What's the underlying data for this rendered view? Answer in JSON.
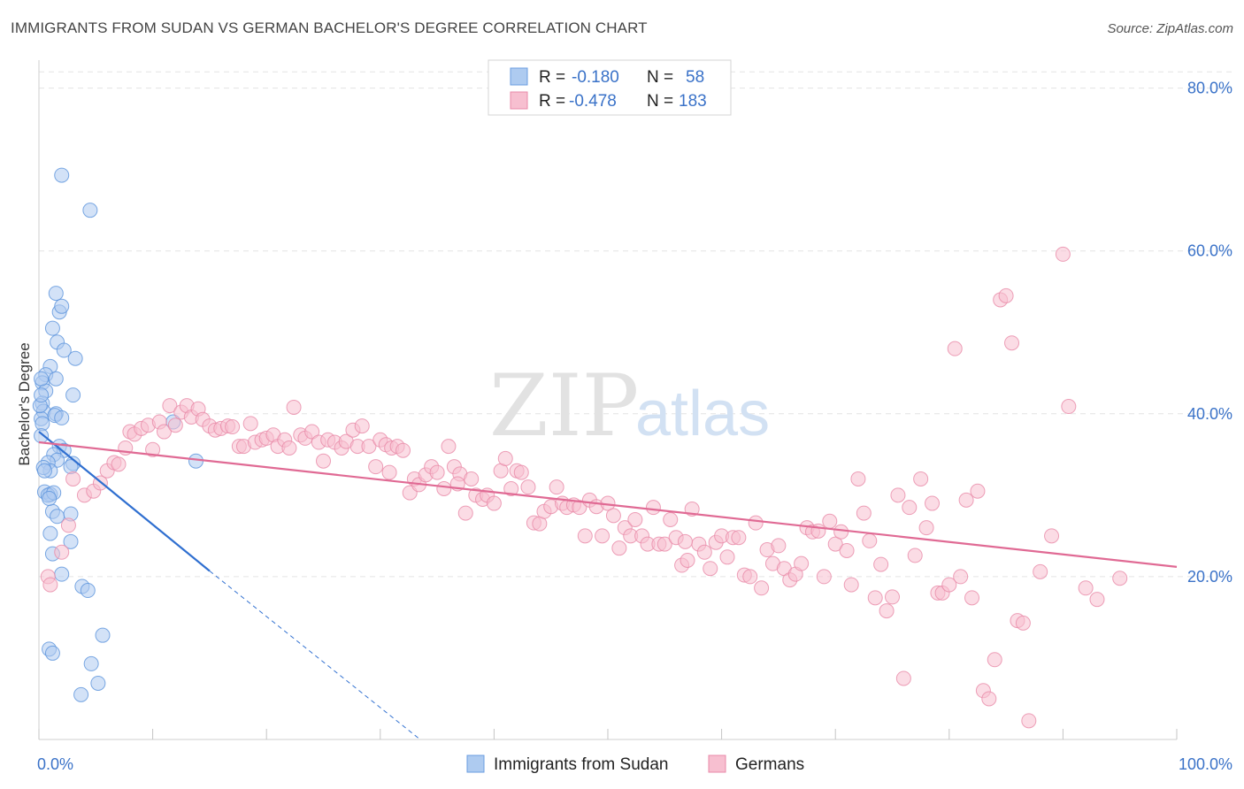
{
  "header": {
    "title": "IMMIGRANTS FROM SUDAN VS GERMAN BACHELOR'S DEGREE CORRELATION CHART",
    "source": "Source: ZipAtlas.com"
  },
  "watermark": {
    "part1": "ZIP",
    "part2": "atlas"
  },
  "legend": {
    "rows": [
      {
        "r_label": "R =",
        "r_value": "-0.180",
        "n_label": "N =",
        "n_value": "58",
        "color": "#aecbf0",
        "stroke": "#6a9de0"
      },
      {
        "r_label": "R =",
        "r_value": "-0.478",
        "n_label": "N =",
        "n_value": "183",
        "color": "#f7bfd0",
        "stroke": "#e88aa8"
      }
    ]
  },
  "chart_data": {
    "type": "scatter",
    "xlabel": "",
    "ylabel": "Bachelor's Degree",
    "xlim": [
      0,
      100
    ],
    "ylim": [
      0,
      83
    ],
    "x_tick_labels": [
      {
        "value": 0,
        "label": "0.0%"
      },
      {
        "value": 100,
        "label": "100.0%"
      }
    ],
    "y_tick_labels": [
      {
        "value": 20,
        "label": "20.0%"
      },
      {
        "value": 40,
        "label": "40.0%"
      },
      {
        "value": 60,
        "label": "60.0%"
      },
      {
        "value": 80,
        "label": "80.0%"
      }
    ],
    "grid": true,
    "series": [
      {
        "name": "Immigrants from Sudan",
        "color": "#aecbf0",
        "stroke": "#5b93dc",
        "trend_color": "#2f6fd0",
        "trend": {
          "x0": 0,
          "y0": 37.8,
          "x1": 15,
          "y1": 20.7,
          "dash_x1": 33.5,
          "dash_y1": 0
        },
        "points": [
          [
            2.0,
            69.3
          ],
          [
            4.5,
            65.0
          ],
          [
            1.5,
            54.8
          ],
          [
            1.8,
            52.5
          ],
          [
            2.0,
            53.2
          ],
          [
            1.2,
            50.5
          ],
          [
            1.6,
            48.8
          ],
          [
            2.2,
            47.8
          ],
          [
            3.2,
            46.8
          ],
          [
            1.0,
            45.8
          ],
          [
            0.6,
            44.8
          ],
          [
            1.5,
            44.3
          ],
          [
            0.3,
            43.8
          ],
          [
            0.6,
            42.8
          ],
          [
            3.0,
            42.3
          ],
          [
            0.3,
            41.3
          ],
          [
            0.4,
            40.3
          ],
          [
            1.5,
            40.0
          ],
          [
            1.4,
            39.8
          ],
          [
            2.0,
            39.5
          ],
          [
            0.2,
            39.4
          ],
          [
            0.3,
            38.8
          ],
          [
            11.8,
            39.0
          ],
          [
            0.2,
            37.3
          ],
          [
            1.8,
            36.0
          ],
          [
            2.2,
            35.5
          ],
          [
            1.3,
            35.0
          ],
          [
            1.6,
            34.3
          ],
          [
            0.8,
            34.0
          ],
          [
            3.0,
            33.9
          ],
          [
            1.0,
            33.0
          ],
          [
            2.8,
            33.5
          ],
          [
            13.8,
            34.2
          ],
          [
            0.4,
            33.4
          ],
          [
            0.5,
            30.4
          ],
          [
            1.0,
            30.1
          ],
          [
            0.8,
            30.0
          ],
          [
            1.3,
            30.3
          ],
          [
            1.2,
            28.0
          ],
          [
            1.6,
            27.4
          ],
          [
            2.8,
            27.7
          ],
          [
            1.0,
            25.3
          ],
          [
            2.8,
            24.3
          ],
          [
            1.2,
            22.8
          ],
          [
            2.0,
            20.3
          ],
          [
            3.8,
            18.8
          ],
          [
            4.3,
            18.3
          ],
          [
            5.6,
            12.8
          ],
          [
            0.9,
            11.1
          ],
          [
            1.2,
            10.6
          ],
          [
            4.6,
            9.3
          ],
          [
            5.2,
            6.9
          ],
          [
            3.7,
            5.5
          ],
          [
            0.1,
            41.0
          ],
          [
            0.2,
            42.3
          ],
          [
            0.2,
            44.3
          ],
          [
            0.5,
            33.0
          ],
          [
            0.9,
            29.6
          ]
        ]
      },
      {
        "name": "Germans",
        "color": "#f7bfd0",
        "stroke": "#e88aa8",
        "trend_color": "#e06a94",
        "trend": {
          "x0": 0,
          "y0": 36.5,
          "x1": 100,
          "y1": 21.2
        },
        "points": [
          [
            0.8,
            20.0
          ],
          [
            1.0,
            19.0
          ],
          [
            2.0,
            23.0
          ],
          [
            2.6,
            26.3
          ],
          [
            3.0,
            32.0
          ],
          [
            4.0,
            30.0
          ],
          [
            4.8,
            30.5
          ],
          [
            5.4,
            31.5
          ],
          [
            6.0,
            33.0
          ],
          [
            6.6,
            34.0
          ],
          [
            7.0,
            33.8
          ],
          [
            7.6,
            35.8
          ],
          [
            8.0,
            37.8
          ],
          [
            8.4,
            37.5
          ],
          [
            9.0,
            38.2
          ],
          [
            9.6,
            38.6
          ],
          [
            10.0,
            35.6
          ],
          [
            10.6,
            39.0
          ],
          [
            11.0,
            37.8
          ],
          [
            11.5,
            41.0
          ],
          [
            12.0,
            38.6
          ],
          [
            12.5,
            40.2
          ],
          [
            13.0,
            41.0
          ],
          [
            13.4,
            39.6
          ],
          [
            14.0,
            40.6
          ],
          [
            14.4,
            39.3
          ],
          [
            15.0,
            38.5
          ],
          [
            15.5,
            38.0
          ],
          [
            16.0,
            38.2
          ],
          [
            16.6,
            38.5
          ],
          [
            17.0,
            38.4
          ],
          [
            17.6,
            36.0
          ],
          [
            18.0,
            36.0
          ],
          [
            18.6,
            38.8
          ],
          [
            19.0,
            36.5
          ],
          [
            19.6,
            36.8
          ],
          [
            20.0,
            37.0
          ],
          [
            20.6,
            37.4
          ],
          [
            21.0,
            36.0
          ],
          [
            21.6,
            36.8
          ],
          [
            22.0,
            35.8
          ],
          [
            22.4,
            40.8
          ],
          [
            23.0,
            37.4
          ],
          [
            23.4,
            37.0
          ],
          [
            24.0,
            37.8
          ],
          [
            24.6,
            36.5
          ],
          [
            25.0,
            34.2
          ],
          [
            25.4,
            36.8
          ],
          [
            26.0,
            36.5
          ],
          [
            26.6,
            35.8
          ],
          [
            27.0,
            36.6
          ],
          [
            27.6,
            38.0
          ],
          [
            28.0,
            36.0
          ],
          [
            28.4,
            38.5
          ],
          [
            29.0,
            36.0
          ],
          [
            29.6,
            33.5
          ],
          [
            30.0,
            36.8
          ],
          [
            30.5,
            36.2
          ],
          [
            31.0,
            35.8
          ],
          [
            31.5,
            36.0
          ],
          [
            32.0,
            35.5
          ],
          [
            32.6,
            30.3
          ],
          [
            33.0,
            32.0
          ],
          [
            33.4,
            31.3
          ],
          [
            34.0,
            32.5
          ],
          [
            34.5,
            33.5
          ],
          [
            35.0,
            32.8
          ],
          [
            35.6,
            30.8
          ],
          [
            36.0,
            36.0
          ],
          [
            36.5,
            33.5
          ],
          [
            37.0,
            32.6
          ],
          [
            37.5,
            27.8
          ],
          [
            38.0,
            32.0
          ],
          [
            38.4,
            30.0
          ],
          [
            39.0,
            29.5
          ],
          [
            39.4,
            30.0
          ],
          [
            40.0,
            29.0
          ],
          [
            40.6,
            33.0
          ],
          [
            41.0,
            34.5
          ],
          [
            41.5,
            30.8
          ],
          [
            42.0,
            33.0
          ],
          [
            42.4,
            32.8
          ],
          [
            43.0,
            31.0
          ],
          [
            43.5,
            26.6
          ],
          [
            44.0,
            26.5
          ],
          [
            44.4,
            28.0
          ],
          [
            45.0,
            28.6
          ],
          [
            45.5,
            31.0
          ],
          [
            46.0,
            29.0
          ],
          [
            46.4,
            28.5
          ],
          [
            47.0,
            28.8
          ],
          [
            47.5,
            28.5
          ],
          [
            48.0,
            25.0
          ],
          [
            48.4,
            29.4
          ],
          [
            49.0,
            28.6
          ],
          [
            49.5,
            25.0
          ],
          [
            50.0,
            29.0
          ],
          [
            50.5,
            27.5
          ],
          [
            51.0,
            23.5
          ],
          [
            51.5,
            26.0
          ],
          [
            52.0,
            25.0
          ],
          [
            52.4,
            27.0
          ],
          [
            53.0,
            25.0
          ],
          [
            53.5,
            24.0
          ],
          [
            54.0,
            28.5
          ],
          [
            54.5,
            24.0
          ],
          [
            55.0,
            24.0
          ],
          [
            55.5,
            27.0
          ],
          [
            56.0,
            24.8
          ],
          [
            56.5,
            21.4
          ],
          [
            57.0,
            22.0
          ],
          [
            57.4,
            28.3
          ],
          [
            58.0,
            24.0
          ],
          [
            58.5,
            23.0
          ],
          [
            59.0,
            21.0
          ],
          [
            59.5,
            24.2
          ],
          [
            60.0,
            25.0
          ],
          [
            60.5,
            22.4
          ],
          [
            61.0,
            24.8
          ],
          [
            61.5,
            24.8
          ],
          [
            62.0,
            20.2
          ],
          [
            62.5,
            20.0
          ],
          [
            63.0,
            26.6
          ],
          [
            63.5,
            18.6
          ],
          [
            64.0,
            23.3
          ],
          [
            64.5,
            21.6
          ],
          [
            65.0,
            23.8
          ],
          [
            65.5,
            21.0
          ],
          [
            66.0,
            19.6
          ],
          [
            66.5,
            20.3
          ],
          [
            67.0,
            21.6
          ],
          [
            67.5,
            26.0
          ],
          [
            68.0,
            25.5
          ],
          [
            68.5,
            25.6
          ],
          [
            69.0,
            20.0
          ],
          [
            69.5,
            26.8
          ],
          [
            70.0,
            24.0
          ],
          [
            70.5,
            25.5
          ],
          [
            71.0,
            23.2
          ],
          [
            71.4,
            19.0
          ],
          [
            72.0,
            32.0
          ],
          [
            72.5,
            27.8
          ],
          [
            73.0,
            24.4
          ],
          [
            73.5,
            17.4
          ],
          [
            74.0,
            21.5
          ],
          [
            74.5,
            15.8
          ],
          [
            75.0,
            17.5
          ],
          [
            75.5,
            30.0
          ],
          [
            76.0,
            7.5
          ],
          [
            76.5,
            28.5
          ],
          [
            77.0,
            22.6
          ],
          [
            77.5,
            32.0
          ],
          [
            78.0,
            26.0
          ],
          [
            78.5,
            29.0
          ],
          [
            79.0,
            18.0
          ],
          [
            79.4,
            18.0
          ],
          [
            80.0,
            19.0
          ],
          [
            80.5,
            48.0
          ],
          [
            81.0,
            20.0
          ],
          [
            81.5,
            29.4
          ],
          [
            82.0,
            17.4
          ],
          [
            82.5,
            30.5
          ],
          [
            83.0,
            6.0
          ],
          [
            83.5,
            5.0
          ],
          [
            84.0,
            9.8
          ],
          [
            84.5,
            54.0
          ],
          [
            85.0,
            54.5
          ],
          [
            85.5,
            48.7
          ],
          [
            86.0,
            14.6
          ],
          [
            86.5,
            14.3
          ],
          [
            87.0,
            2.3
          ],
          [
            88.0,
            20.6
          ],
          [
            89.0,
            25.0
          ],
          [
            90.0,
            59.6
          ],
          [
            90.5,
            40.9
          ],
          [
            92.0,
            18.6
          ],
          [
            93.0,
            17.2
          ],
          [
            95.0,
            19.8
          ],
          [
            30.8,
            32.8
          ],
          [
            36.8,
            31.4
          ],
          [
            56.8,
            24.3
          ]
        ]
      }
    ]
  },
  "bottom_legend": [
    {
      "label": "Immigrants from Sudan",
      "color": "#aecbf0",
      "stroke": "#6a9de0"
    },
    {
      "label": "Germans",
      "color": "#f7bfd0",
      "stroke": "#e88aa8"
    }
  ]
}
